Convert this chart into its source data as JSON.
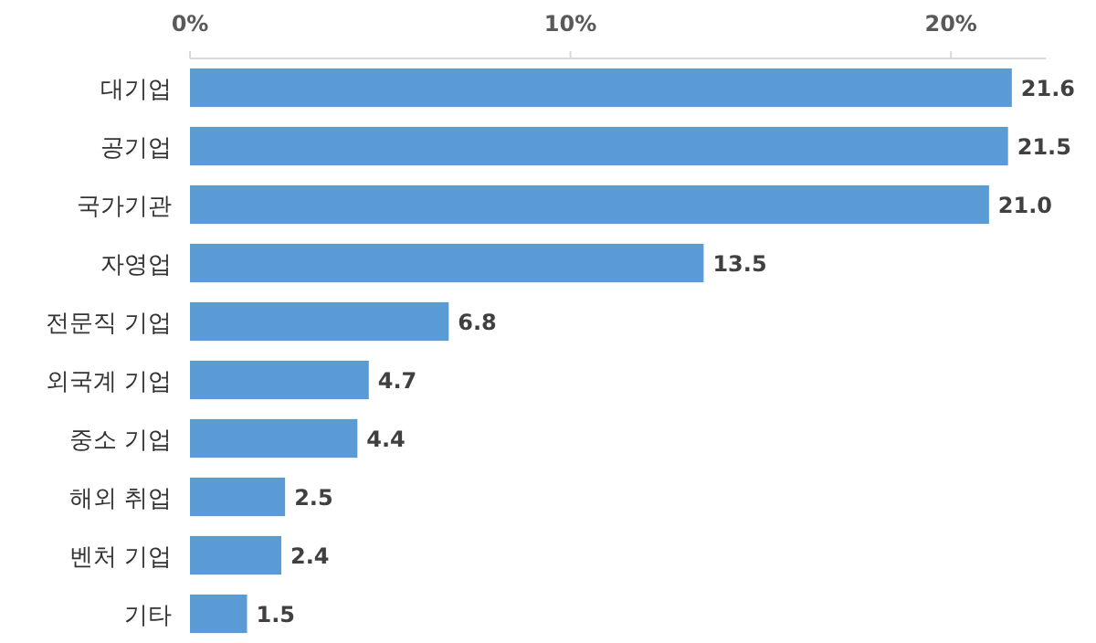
{
  "chart_data": {
    "type": "bar",
    "orientation": "horizontal",
    "categories": [
      "대기업",
      "공기업",
      "국가기관",
      "자영업",
      "전문직 기업",
      "외국계 기업",
      "중소 기업",
      "해외 취업",
      "벤처 기업",
      "기타"
    ],
    "values": [
      21.6,
      21.5,
      21.0,
      13.5,
      6.8,
      4.7,
      4.4,
      2.5,
      2.4,
      1.5
    ],
    "color": "#5b9bd5",
    "value_labels": [
      "21.6",
      "21.5",
      "21.0",
      "13.5",
      "6.8",
      "4.7",
      "4.4",
      "2.5",
      "2.4",
      "1.5"
    ],
    "xlim": [
      0,
      22.5
    ],
    "xticks": [
      {
        "value": 0,
        "label": "0%"
      },
      {
        "value": 10,
        "label": "10%"
      },
      {
        "value": 20,
        "label": "20%"
      }
    ],
    "grid": false
  }
}
